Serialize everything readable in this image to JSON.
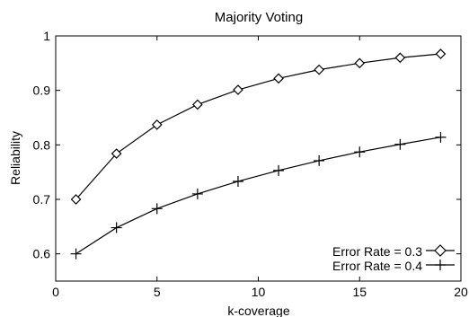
{
  "chart_data": {
    "type": "line",
    "title": "Majority Voting",
    "xlabel": "k-coverage",
    "ylabel": "Reliability",
    "xlim": [
      0,
      20
    ],
    "ylim": [
      0.55,
      1.0
    ],
    "xticks": [
      0,
      5,
      10,
      15,
      20
    ],
    "xtick_labels": [
      "0",
      "5",
      "10",
      "15",
      "20"
    ],
    "yticks": [
      0.6,
      0.7,
      0.8,
      0.9,
      1.0
    ],
    "ytick_labels": [
      "0.6",
      "0.7",
      "0.8",
      "0.9",
      "1"
    ],
    "grid": false,
    "legend_position": "bottom-right",
    "series": [
      {
        "name": "Error Rate = 0.3",
        "marker": "diamond",
        "color": "#000000",
        "x": [
          1,
          3,
          5,
          7,
          9,
          11,
          13,
          15,
          17,
          19
        ],
        "y": [
          0.7,
          0.784,
          0.837,
          0.874,
          0.901,
          0.922,
          0.938,
          0.95,
          0.96,
          0.967
        ]
      },
      {
        "name": "Error Rate = 0.4",
        "marker": "plus",
        "color": "#000000",
        "x": [
          1,
          3,
          5,
          7,
          9,
          11,
          13,
          15,
          17,
          19
        ],
        "y": [
          0.6,
          0.648,
          0.683,
          0.71,
          0.733,
          0.753,
          0.771,
          0.787,
          0.801,
          0.814
        ]
      }
    ]
  }
}
